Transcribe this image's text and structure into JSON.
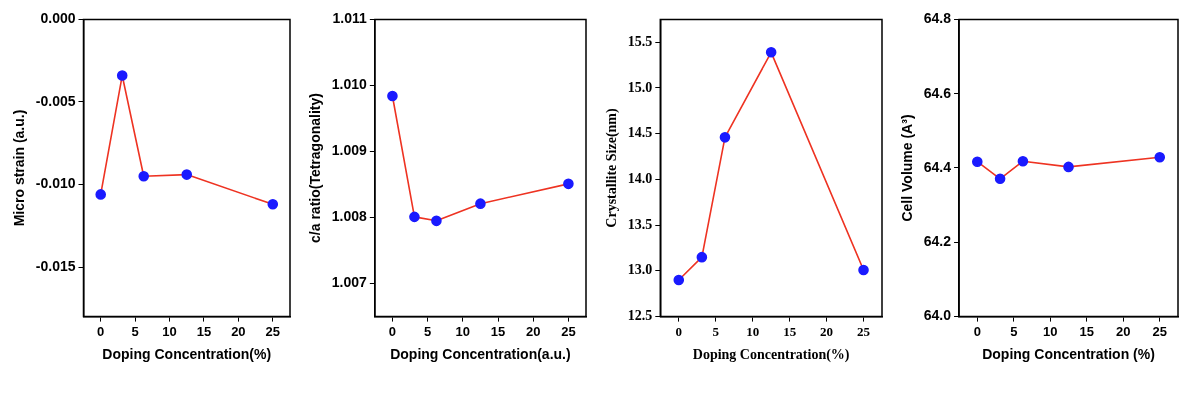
{
  "chart_data": [
    {
      "type": "line",
      "xlabel": "Doping Concentration(%)",
      "ylabel": "Micro strain (a.u.)",
      "xlim": [
        -2.5,
        27.5
      ],
      "xticks": [
        0,
        5,
        10,
        15,
        20,
        25
      ],
      "ylim": [
        -0.018,
        0
      ],
      "yticks": [
        {
          "value": -0.015,
          "label": "-0.015"
        },
        {
          "value": -0.01,
          "label": "-0.010"
        },
        {
          "value": -0.005,
          "label": "-0.005"
        },
        {
          "value": 0,
          "label": "0.000"
        }
      ],
      "grid": false,
      "legend": false,
      "marker": "circle",
      "line_style": "solid",
      "series": [
        {
          "x": [
            0,
            3.125,
            6.25,
            12.5,
            25
          ],
          "values": [
            -0.0106,
            -0.0034,
            -0.0095,
            -0.0094,
            -0.0112
          ],
          "color": "#ee3322",
          "colors": [
            "#1a1aff",
            "#1a1aff",
            "#1a1aff",
            "#1a1aff",
            "#1a1aff"
          ]
        }
      ]
    },
    {
      "type": "line",
      "xlabel": "Doping Concentration(a.u.)",
      "ylabel": "c/a ratio(Tetragonality)",
      "xlim": [
        -2.5,
        27.5
      ],
      "xticks": [
        0,
        5,
        10,
        15,
        20,
        25
      ],
      "ylim": [
        1.0065,
        1.011
      ],
      "yticks": [
        {
          "value": 1.007,
          "label": "1.007"
        },
        {
          "value": 1.008,
          "label": "1.008"
        },
        {
          "value": 1.009,
          "label": "1.009"
        },
        {
          "value": 1.01,
          "label": "1.010"
        },
        {
          "value": 1.011,
          "label": "1.011"
        }
      ],
      "grid": false,
      "legend": false,
      "marker": "circle",
      "line_style": "solid",
      "series": [
        {
          "x": [
            0,
            3.125,
            6.25,
            12.5,
            25
          ],
          "values": [
            1.00984,
            1.00801,
            1.00795,
            1.00821,
            1.00851
          ],
          "color": "#ee3322",
          "colors": [
            "#1a1aff",
            "#1a1aff",
            "#1a1aff",
            "#1a1aff",
            "#1a1aff"
          ]
        }
      ]
    },
    {
      "type": "line",
      "xlabel": "Doping Concentration(%)",
      "ylabel": "Crystallite Size(nm)",
      "xlim": [
        -2.5,
        27.5
      ],
      "xticks": [
        0,
        5,
        10,
        15,
        20,
        25
      ],
      "ylim": [
        12.5,
        15.75
      ],
      "yticks": [
        {
          "value": 12.5,
          "label": "12.5"
        },
        {
          "value": 13,
          "label": "13.0"
        },
        {
          "value": 13.5,
          "label": "13.5"
        },
        {
          "value": 14,
          "label": "14.0"
        },
        {
          "value": 14.5,
          "label": "14.5"
        },
        {
          "value": 15,
          "label": "15.0"
        },
        {
          "value": 15.5,
          "label": "15.5"
        }
      ],
      "grid": false,
      "legend": false,
      "marker": "circle",
      "line_style": "solid",
      "series": [
        {
          "x": [
            0,
            3.125,
            6.25,
            12.5,
            25
          ],
          "values": [
            12.9,
            13.15,
            14.46,
            15.39,
            13.01
          ],
          "color": "#ee3322",
          "colors": [
            "#1a1aff",
            "#1a1aff",
            "#1a1aff",
            "#1a1aff",
            "#1a1aff"
          ]
        }
      ]
    },
    {
      "type": "line",
      "xlabel": "Doping Concentration (%)",
      "ylabel": "Cell Volume (A³)",
      "xlim": [
        -2.5,
        27.5
      ],
      "xticks": [
        0,
        5,
        10,
        15,
        20,
        25
      ],
      "ylim": [
        64,
        64.8
      ],
      "yticks": [
        {
          "value": 64,
          "label": "64.0"
        },
        {
          "value": 64.2,
          "label": "64.2"
        },
        {
          "value": 64.4,
          "label": "64.4"
        },
        {
          "value": 64.6,
          "label": "64.6"
        },
        {
          "value": 64.8,
          "label": "64.8"
        }
      ],
      "grid": false,
      "legend": false,
      "marker": "circle",
      "line_style": "solid",
      "series": [
        {
          "x": [
            0,
            3.125,
            6.25,
            12.5,
            25
          ],
          "values": [
            64.417,
            64.371,
            64.418,
            64.403,
            64.429
          ],
          "color": "#ee3322",
          "colors": [
            "#1a1aff",
            "#1a1aff",
            "#1a1aff",
            "#1a1aff",
            "#1a1aff"
          ]
        }
      ]
    }
  ]
}
